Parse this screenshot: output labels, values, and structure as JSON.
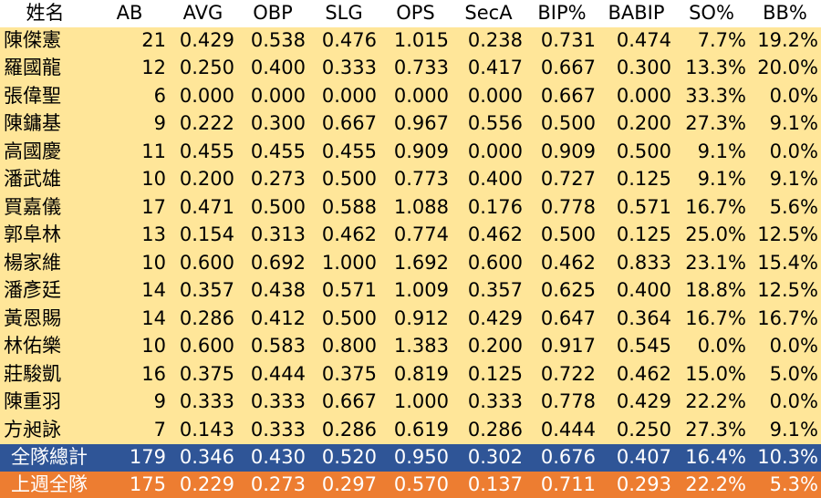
{
  "headers": [
    "姓名",
    "AB",
    "AVG",
    "OBP",
    "SLG",
    "OPS",
    "SecA",
    "BIP%",
    "BABIP",
    "SO%",
    "BB%"
  ],
  "rows": [
    [
      "陳傑憲",
      "21",
      "0.429",
      "0.538",
      "0.476",
      "1.015",
      "0.238",
      "0.731",
      "0.474",
      "7.7%",
      "19.2%"
    ],
    [
      "羅國龍",
      "12",
      "0.250",
      "0.400",
      "0.333",
      "0.733",
      "0.417",
      "0.667",
      "0.300",
      "13.3%",
      "20.0%"
    ],
    [
      "張偉聖",
      "6",
      "0.000",
      "0.000",
      "0.000",
      "0.000",
      "0.000",
      "0.667",
      "0.000",
      "33.3%",
      "0.0%"
    ],
    [
      "陳鏞基",
      "9",
      "0.222",
      "0.300",
      "0.667",
      "0.967",
      "0.556",
      "0.500",
      "0.200",
      "27.3%",
      "9.1%"
    ],
    [
      "高國慶",
      "11",
      "0.455",
      "0.455",
      "0.455",
      "0.909",
      "0.000",
      "0.909",
      "0.500",
      "9.1%",
      "0.0%"
    ],
    [
      "潘武雄",
      "10",
      "0.200",
      "0.273",
      "0.500",
      "0.773",
      "0.400",
      "0.727",
      "0.125",
      "9.1%",
      "9.1%"
    ],
    [
      "買嘉儀",
      "17",
      "0.471",
      "0.500",
      "0.588",
      "1.088",
      "0.176",
      "0.778",
      "0.571",
      "16.7%",
      "5.6%"
    ],
    [
      "郭阜林",
      "13",
      "0.154",
      "0.313",
      "0.462",
      "0.774",
      "0.462",
      "0.500",
      "0.125",
      "25.0%",
      "12.5%"
    ],
    [
      "楊家維",
      "10",
      "0.600",
      "0.692",
      "1.000",
      "1.692",
      "0.600",
      "0.462",
      "0.833",
      "23.1%",
      "15.4%"
    ],
    [
      "潘彥廷",
      "14",
      "0.357",
      "0.438",
      "0.571",
      "1.009",
      "0.357",
      "0.625",
      "0.400",
      "18.8%",
      "12.5%"
    ],
    [
      "黃恩賜",
      "14",
      "0.286",
      "0.412",
      "0.500",
      "0.912",
      "0.429",
      "0.647",
      "0.364",
      "16.7%",
      "16.7%"
    ],
    [
      "林佑樂",
      "10",
      "0.600",
      "0.583",
      "0.800",
      "1.383",
      "0.200",
      "0.917",
      "0.545",
      "0.0%",
      "0.0%"
    ],
    [
      "莊駿凱",
      "16",
      "0.375",
      "0.444",
      "0.375",
      "0.819",
      "0.125",
      "0.722",
      "0.462",
      "15.0%",
      "5.0%"
    ],
    [
      "陳重羽",
      "9",
      "0.333",
      "0.333",
      "0.667",
      "1.000",
      "0.333",
      "0.778",
      "0.429",
      "22.2%",
      "0.0%"
    ],
    [
      "方昶詠",
      "7",
      "0.143",
      "0.333",
      "0.286",
      "0.619",
      "0.286",
      "0.444",
      "0.250",
      "27.3%",
      "9.1%"
    ]
  ],
  "team_total": [
    "全隊總計",
    "179",
    "0.346",
    "0.430",
    "0.520",
    "0.950",
    "0.302",
    "0.676",
    "0.407",
    "16.4%",
    "10.3%"
  ],
  "last_week": [
    "上週全隊",
    "175",
    "0.229",
    "0.273",
    "0.297",
    "0.570",
    "0.137",
    "0.711",
    "0.293",
    "22.2%",
    "5.3%"
  ],
  "colors": {
    "row_bg": "#ffe699",
    "team_bg": "#2f5597",
    "lastweek_bg": "#ed7d31",
    "header_bg": "#ffffff"
  }
}
